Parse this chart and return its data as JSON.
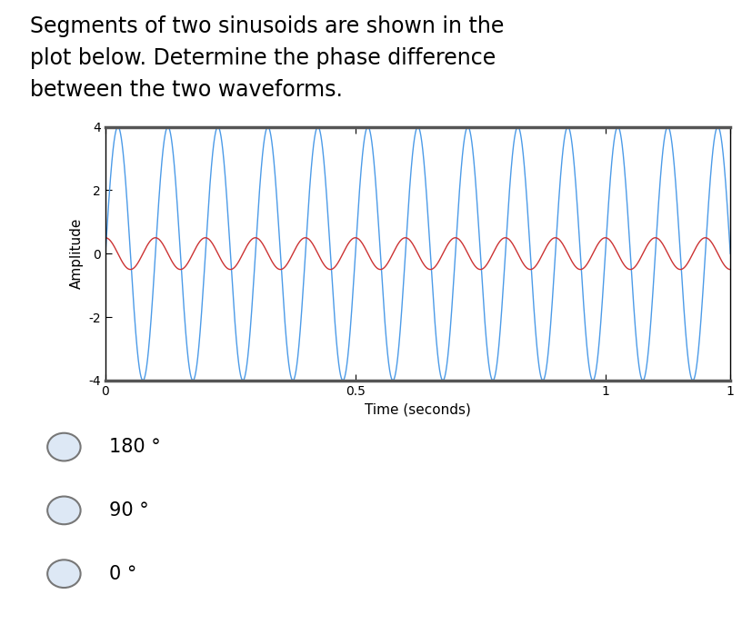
{
  "title_line1": "Segments of two sinusoids are shown in the",
  "title_line2": "plot below. Determine the phase difference",
  "title_line3": "between the two waveforms.",
  "xlabel": "Time (seconds)",
  "ylabel": "Amplitude",
  "xlim": [
    0,
    1.25
  ],
  "ylim": [
    -4,
    4
  ],
  "xtick_vals": [
    0,
    0.5,
    1,
    1.25
  ],
  "xtick_labels": [
    "0",
    "0.5",
    "1",
    "1"
  ],
  "yticks": [
    -4,
    -2,
    0,
    2,
    4
  ],
  "wave1_amplitude": 4,
  "wave1_frequency": 10,
  "wave1_phase": 0,
  "wave1_color": "#4c9be8",
  "wave2_amplitude": 0.5,
  "wave2_frequency": 10,
  "wave2_phase": 90,
  "wave2_color": "#cc3333",
  "background_color": "#ffffff",
  "plot_bg_color": "#ffffff",
  "choices": [
    "180 °",
    "90 °",
    "0 °"
  ],
  "choice_fontsize": 15,
  "title_fontsize": 17,
  "axis_label_fontsize": 11,
  "tick_fontsize": 10
}
